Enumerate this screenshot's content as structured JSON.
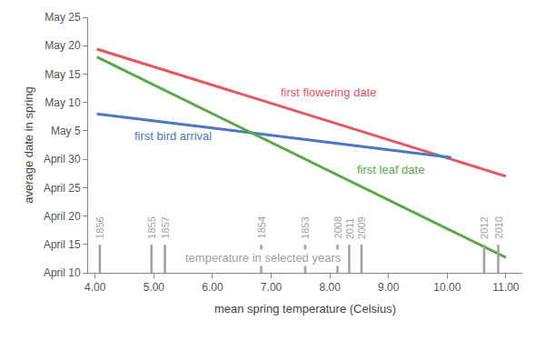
{
  "chart_data": {
    "type": "line",
    "x_title": "mean spring temperature (Celsius)",
    "y_title": "average date in spring",
    "xlim": [
      3.88,
      11.28
    ],
    "xticks": [
      {
        "value": 4,
        "label": "4.00"
      },
      {
        "value": 5,
        "label": "5.00"
      },
      {
        "value": 6,
        "label": "6.00"
      },
      {
        "value": 7,
        "label": "7.00"
      },
      {
        "value": 8,
        "label": "8.00"
      },
      {
        "value": 9,
        "label": "9.00"
      },
      {
        "value": 10,
        "label": "10.00"
      },
      {
        "value": 11,
        "label": "11.00"
      }
    ],
    "ylim": [
      100,
      145
    ],
    "yticks": [
      {
        "value": 100,
        "label": "April 10"
      },
      {
        "value": 105,
        "label": "April 15"
      },
      {
        "value": 110,
        "label": "April 20"
      },
      {
        "value": 115,
        "label": "April 25"
      },
      {
        "value": 120,
        "label": "April 30"
      },
      {
        "value": 125,
        "label": "May 5"
      },
      {
        "value": 130,
        "label": "May 10"
      },
      {
        "value": 135,
        "label": "May 15"
      },
      {
        "value": 140,
        "label": "May 20"
      },
      {
        "value": 145,
        "label": "May 25"
      }
    ],
    "grid": false,
    "series": [
      {
        "name": "first flowering date",
        "color": "#e8545f",
        "x": [
          4.03,
          11.0
        ],
        "values": [
          139.4,
          117.0
        ]
      },
      {
        "name": "first bird arrival",
        "color": "#4a78c2",
        "x": [
          4.03,
          10.07
        ],
        "values": [
          128.0,
          120.3
        ]
      },
      {
        "name": "first leaf date",
        "color": "#5ba846",
        "x": [
          4.03,
          11.0
        ],
        "values": [
          138.0,
          102.7
        ]
      }
    ],
    "selected_years": {
      "label": "temperature in selected years",
      "color": "#a0a0a0",
      "names": [
        "1856",
        "1855",
        "1857",
        "1854",
        "1853",
        "2008",
        "2011",
        "2009",
        "2012",
        "2010"
      ],
      "x": [
        4.08,
        4.96,
        5.19,
        6.83,
        7.58,
        8.13,
        8.33,
        8.54,
        10.63,
        10.87
      ]
    }
  }
}
